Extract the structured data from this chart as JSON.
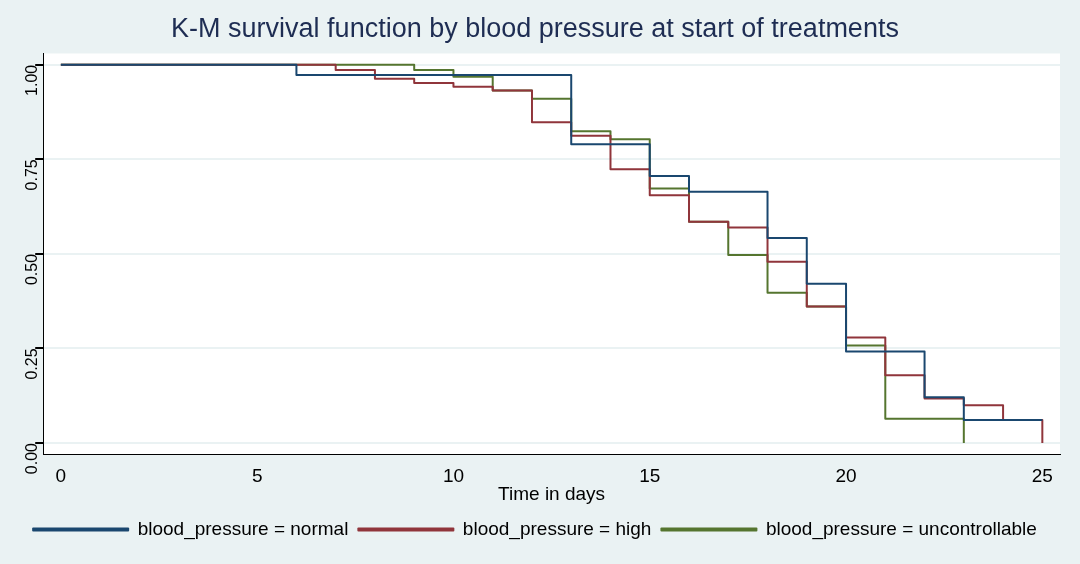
{
  "chart_data": {
    "type": "step",
    "title": "K-M survival function by blood pressure at start of treatments",
    "xlabel": "Time in days",
    "xlim": [
      -0.45,
      25.45
    ],
    "xticks": [
      0,
      5,
      10,
      15,
      20,
      25
    ],
    "ylim": [
      -0.03,
      1.03
    ],
    "yticks": [
      {
        "value": 0,
        "label": "0.00"
      },
      {
        "value": 0.25,
        "label": "0.25"
      },
      {
        "value": 0.5,
        "label": "0.50"
      },
      {
        "value": 0.75,
        "label": "0.75"
      },
      {
        "value": 1,
        "label": "1.00"
      }
    ],
    "grid": "y",
    "legend": "bottom",
    "series": [
      {
        "name": "blood_pressure = normal",
        "color": "#1a476f",
        "x": [
          0,
          6,
          13,
          15,
          16,
          18,
          19,
          20,
          22,
          23,
          25
        ],
        "values": [
          1,
          0.973,
          0.79,
          0.706,
          0.664,
          0.542,
          0.421,
          0.242,
          0.121,
          0.061,
          0.061
        ]
      },
      {
        "name": "blood_pressure = high",
        "color": "#90353b",
        "x": [
          0,
          7,
          8,
          9,
          10,
          11,
          12,
          13,
          14,
          15,
          16,
          17,
          18,
          19,
          20,
          21,
          22,
          23,
          24,
          25
        ],
        "values": [
          1,
          0.986,
          0.963,
          0.952,
          0.942,
          0.932,
          0.848,
          0.812,
          0.724,
          0.655,
          0.585,
          0.57,
          0.479,
          0.361,
          0.279,
          0.179,
          0.118,
          0.1,
          0.061,
          0
        ]
      },
      {
        "name": "blood_pressure = uncontrollable",
        "color": "#55752f",
        "x": [
          0,
          9,
          10,
          11,
          12,
          13,
          14,
          15,
          16,
          17,
          18,
          19,
          20,
          21,
          23
        ],
        "values": [
          1,
          0.986,
          0.968,
          0.932,
          0.91,
          0.824,
          0.803,
          0.673,
          0.585,
          0.497,
          0.397,
          0.361,
          0.258,
          0.064,
          0
        ]
      }
    ]
  }
}
